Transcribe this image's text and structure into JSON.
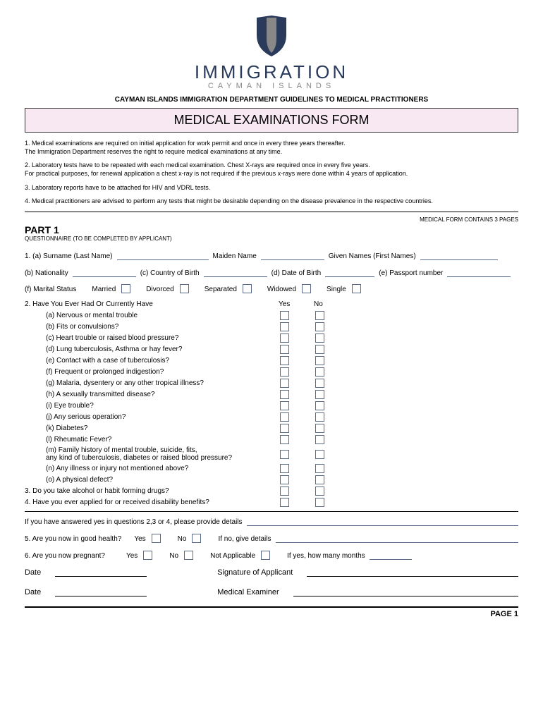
{
  "logo": {
    "main": "IMMIGRATION",
    "sub": "CAYMAN ISLANDS"
  },
  "dept_line": "CAYMAN ISLANDS IMMIGRATION DEPARTMENT GUIDELINES TO MEDICAL PRACTITIONERS",
  "form_title": "MEDICAL EXAMINATIONS FORM",
  "instructions": [
    "1. Medical examinations are required on initial application for work permit and once in every three years thereafter.\nThe Immigration Department reserves the right to require medical examinations at any time.",
    "2. Laboratory tests have to be repeated with each medical examination.  Chest X-rays are required once in every five years.\nFor practical purposes, for renewal application a chest x-ray is not required if the previous x-rays were done within 4 years of application.",
    "3. Laboratory reports have to be attached for HIV and VDRL tests.",
    "4. Medical practitioners are advised to perform any tests that might be desirable depending on the disease prevalence in the respective countries."
  ],
  "pages_note": "MEDICAL FORM CONTAINS 3 PAGES",
  "part1": {
    "title": "PART 1",
    "sub": "QUESTIONNAIRE (TO BE COMPLETED BY APPLICANT)"
  },
  "q1": {
    "surname": "1. (a) Surname (Last Name)",
    "maiden": "Maiden Name",
    "given": "Given Names (First Names)",
    "nationality": "(b) Nationality",
    "country": "(c) Country of Birth",
    "dob": "(d) Date of Birth",
    "passport": "(e) Passport number",
    "marital": "(f) Marital Status",
    "married": "Married",
    "divorced": "Divorced",
    "separated": "Separated",
    "widowed": "Widowed",
    "single": "Single"
  },
  "q2": {
    "header": "2. Have You Ever Had Or Currently Have",
    "yes": "Yes",
    "no": "No",
    "items": [
      "(a) Nervous or mental trouble",
      "(b) Fits or convulsions?",
      "(c) Heart trouble or raised blood pressure?",
      "(d) Lung tuberculosis, Asthma or hay fever?",
      "(e) Contact with a case of tuberculosis?",
      "(f) Frequent or prolonged indigestion?",
      "(g) Malaria, dysentery or any other tropical illness?",
      "(h) A sexually transmitted disease?",
      "(i) Eye trouble?",
      "(j) Any serious operation?",
      "(k) Diabetes?",
      "(l) Rheumatic Fever?",
      "(m) Family history of mental trouble, suicide, fits,\nany kind of tuberculosis, diabetes or raised blood pressure?",
      "(n) Any illness or injury not mentioned above?",
      "(o) A physical defect?"
    ]
  },
  "q3": "3. Do you take alcohol or habit forming drugs?",
  "q4": "4. Have you ever applied for or received disability benefits?",
  "details_prompt": "If you have answered yes in questions 2,3 or 4, please provide details",
  "q5": {
    "text": "5. Are you now in good health?",
    "yes": "Yes",
    "no": "No",
    "ifno": "If no, give details"
  },
  "q6": {
    "text": "6. Are you now pregnant?",
    "yes": "Yes",
    "no": "No",
    "na": "Not Applicable",
    "ifyes": "If yes, how many months"
  },
  "sig": {
    "date": "Date",
    "applicant": "Signature of Applicant",
    "examiner": "Medical Examiner"
  },
  "footer": "PAGE 1",
  "colors": {
    "accent": "#2a3a5a",
    "pink": "#f7e8f2",
    "line": "#5a6a8a"
  }
}
